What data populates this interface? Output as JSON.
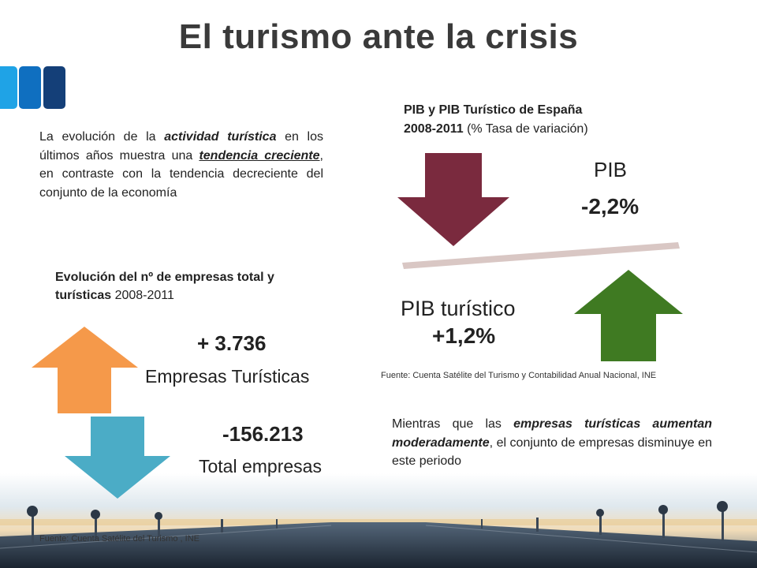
{
  "title": "El turismo ante la crisis",
  "left_paragraph": {
    "t1": "La evolución de la ",
    "t2": "actividad turística",
    "t3": " en los últimos años muestra una ",
    "t4": "tendencia creciente",
    "t5": ", en contraste con la tendencia decreciente del conjunto de la economía"
  },
  "empresas_chart": {
    "title_bold": "Evolución del nº de empresas total y turísticas",
    "title_years": " 2008-2011",
    "turisticas_value": "+ 3.736",
    "turisticas_label": "Empresas Turísticas",
    "total_value": "-156.213",
    "total_label": "Total empresas",
    "source": "Fuente: Cuenta Satélite del Turismo , INE"
  },
  "pib_chart": {
    "title_bold_1": "PIB  y PIB Turístico de España",
    "title_bold_2": "2008-2011",
    "title_rest": "  (% Tasa de variación)",
    "pib_label": "PIB",
    "pib_value": "-2,2%",
    "pibt_label": "PIB turístico",
    "pibt_value": "+1,2%",
    "source": "Fuente: Cuenta Satélite del Turismo y Contabilidad Anual Nacional, INE"
  },
  "right_paragraph": {
    "t1": "Mientras que las ",
    "t2": "empresas turísticas aumentan moderadamente",
    "t3": ", el conjunto de empresas disminuye en este periodo"
  },
  "colors": {
    "orange_arrow": "#f5994a",
    "teal_arrow": "#4bacc6",
    "maroon_arrow": "#7a2a3e",
    "green_arrow": "#3f7a22",
    "tile_1": "#1fa3e6",
    "tile_2": "#0f6fc0",
    "tile_3": "#143f78"
  }
}
